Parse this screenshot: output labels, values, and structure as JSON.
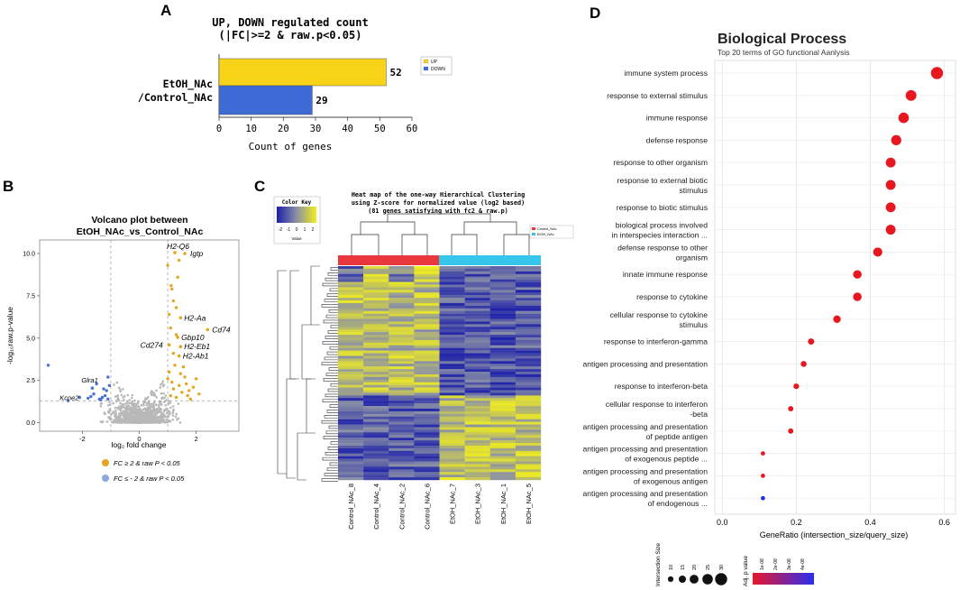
{
  "panel_labels": {
    "a": "A",
    "b": "B",
    "c": "C",
    "d": "D"
  },
  "chart_data": [
    {
      "panel": "A",
      "type": "bar",
      "orientation": "horizontal",
      "title": "UP, DOWN regulated count",
      "subtitle": "(|FC|>=2 & raw.p<0.05)",
      "category_label": "EtOH_NAc\n/Control_NAc",
      "category_lines": [
        "EtOH_NAc",
        "/Control_NAc"
      ],
      "series": [
        {
          "name": "UP",
          "value": 52,
          "color": "#f7d417"
        },
        {
          "name": "DOWN",
          "value": 29,
          "color": "#3c6bd6"
        }
      ],
      "xlabel": "Count of genes",
      "xlim": [
        0,
        60
      ],
      "xticks": [
        "0",
        "10",
        "20",
        "30",
        "40",
        "50",
        "60"
      ],
      "legend": [
        "UP",
        "DOWN"
      ]
    },
    {
      "panel": "B",
      "type": "scatter",
      "title_lines": [
        "Volcano plot between",
        "EtOH_NAc_vs_Control_NAc"
      ],
      "xlabel": "log₂ fold change",
      "ylabel": "-log₁₀raw.p-value",
      "xlim": [
        -3.5,
        3.5
      ],
      "ylim": [
        -0.5,
        10.8
      ],
      "xticks": [
        "-2",
        "0",
        "2"
      ],
      "yticks": [
        "0.0",
        "2.5",
        "5.0",
        "7.5",
        "10.0"
      ],
      "thresholds": {
        "log2fc": [
          -1,
          1
        ],
        "neglog10p": 1.3
      },
      "labeled_up": [
        {
          "gene": "H2-Q6",
          "x": 1.25,
          "y": 10.05
        },
        {
          "gene": "Igtp",
          "x": 1.6,
          "y": 10.0
        },
        {
          "gene": "H2-Aa",
          "x": 1.45,
          "y": 6.2
        },
        {
          "gene": "Cd74",
          "x": 2.4,
          "y": 5.5
        },
        {
          "gene": "Gbp10",
          "x": 1.35,
          "y": 5.05
        },
        {
          "gene": "Cd274",
          "x": 1.05,
          "y": 4.6
        },
        {
          "gene": "H2-Eb1",
          "x": 1.45,
          "y": 4.5
        },
        {
          "gene": "H2-Ab1",
          "x": 1.4,
          "y": 3.95
        }
      ],
      "labeled_down": [
        {
          "gene": "Glra1",
          "x": -1.65,
          "y": 2.05
        },
        {
          "gene": "Kcne2",
          "x": -2.1,
          "y": 1.5
        }
      ],
      "legend": [
        "FC ≥ 2 & raw P < 0.05",
        "FC ≤ - 2 & raw P < 0.05"
      ],
      "colors": {
        "up": "#e6a520",
        "down": "#4a72d0",
        "ns": "#b8b8b8"
      }
    },
    {
      "panel": "C",
      "type": "heatmap",
      "title_lines": [
        "Heat map of the one-way Hierarchical Clustering",
        "using Z-score for normalized value (log2 based)",
        "(81 genes satisfying with fc2 & raw.p)"
      ],
      "color_key": {
        "title": "Color Key",
        "ticks": [
          "-2",
          "-1",
          "0",
          "1",
          "2"
        ],
        "label": "Value"
      },
      "columns": [
        "Control_NAc_8",
        "Control_NAc_4",
        "Control_NAc_2",
        "Control_NAc_6",
        "EtOH_NAc_7",
        "EtOH_NAc_3",
        "EtOH_NAc_1",
        "EtOH_NAc_5"
      ],
      "groups": [
        {
          "name": "Control_NAc",
          "color": "#e8383d"
        },
        {
          "name": "EtOH_NAc",
          "color": "#36c6ec"
        }
      ],
      "n_genes": 81
    },
    {
      "panel": "D",
      "type": "scatter",
      "title": "Biological Process",
      "subtitle": "Top 20 terms of GO functional Aanlysis",
      "xlabel": "GeneRatio (intersection_size/query_size)",
      "xlim": [
        -0.02,
        0.63
      ],
      "xticks": [
        "0.0",
        "0.2",
        "0.4",
        "0.6"
      ],
      "terms": [
        {
          "lines": [
            "immune system process"
          ],
          "ratio": 0.58,
          "size": 30
        },
        {
          "lines": [
            "response to external stimulus"
          ],
          "ratio": 0.51,
          "size": 26
        },
        {
          "lines": [
            "immune response"
          ],
          "ratio": 0.49,
          "size": 25
        },
        {
          "lines": [
            "defense response"
          ],
          "ratio": 0.47,
          "size": 24
        },
        {
          "lines": [
            "response to other organism"
          ],
          "ratio": 0.455,
          "size": 23
        },
        {
          "lines": [
            "response to external biotic",
            "stimulus"
          ],
          "ratio": 0.455,
          "size": 23
        },
        {
          "lines": [
            "response to biotic stimulus"
          ],
          "ratio": 0.455,
          "size": 23
        },
        {
          "lines": [
            "biological process involved",
            "in interspecies interaction ..."
          ],
          "ratio": 0.455,
          "size": 23
        },
        {
          "lines": [
            "defense response to other",
            "organism"
          ],
          "ratio": 0.42,
          "size": 21
        },
        {
          "lines": [
            "innate immune response"
          ],
          "ratio": 0.365,
          "size": 19
        },
        {
          "lines": [
            "response to cytokine"
          ],
          "ratio": 0.365,
          "size": 19
        },
        {
          "lines": [
            "cellular response to cytokine",
            "stimulus"
          ],
          "ratio": 0.31,
          "size": 16
        },
        {
          "lines": [
            "response to interferon-gamma"
          ],
          "ratio": 0.24,
          "size": 12
        },
        {
          "lines": [
            "antigen processing and presentation"
          ],
          "ratio": 0.22,
          "size": 11
        },
        {
          "lines": [
            "response to interferon-beta"
          ],
          "ratio": 0.2,
          "size": 10
        },
        {
          "lines": [
            "cellular response to interferon",
            "-beta"
          ],
          "ratio": 0.185,
          "size": 9
        },
        {
          "lines": [
            "antigen processing and presentation",
            "of peptide antigen"
          ],
          "ratio": 0.185,
          "size": 9
        },
        {
          "lines": [
            "antigen processing and presentation",
            "of exogenous peptide ..."
          ],
          "ratio": 0.11,
          "size": 6
        },
        {
          "lines": [
            "antigen processing and presentation",
            "of exogenous antigen"
          ],
          "ratio": 0.11,
          "size": 6
        },
        {
          "lines": [
            "antigen processing and presentation",
            "of endogenous ..."
          ],
          "ratio": 0.11,
          "size": 6
        }
      ],
      "size_legend": {
        "title": "Intersection Size",
        "values": [
          "10",
          "15",
          "20",
          "25",
          "30"
        ]
      },
      "color_legend": {
        "title": "Adj. p value",
        "ticks": [
          "1e-08",
          "2e-08",
          "3e-08",
          "4e-08"
        ]
      }
    }
  ]
}
